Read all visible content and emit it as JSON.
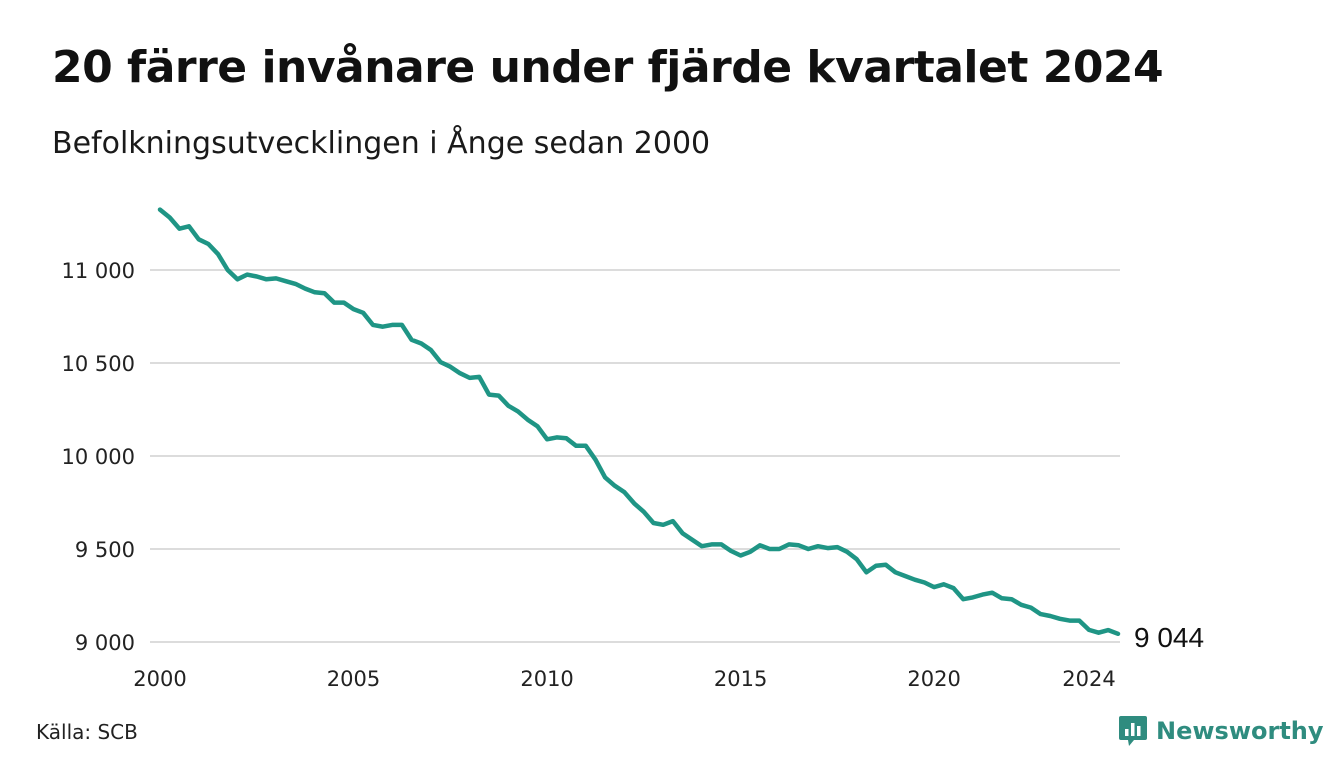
{
  "header": {
    "title": "20 färre invånare under fjärde kvartalet 2024",
    "subtitle": "Befolkningsutvecklingen i Ånge sedan 2000"
  },
  "footer": {
    "source": "Källa: SCB",
    "brand": "Newsworthy",
    "brand_icon": "newsworthy-logo-icon"
  },
  "colors": {
    "line": "#1f9585",
    "grid": "#dcdcdc",
    "brand": "#2f8c7f"
  },
  "chart_data": {
    "type": "line",
    "title": "20 färre invånare under fjärde kvartalet 2024",
    "subtitle": "Befolkningsutvecklingen i Ånge sedan 2000",
    "xlabel": "",
    "ylabel": "",
    "grid": true,
    "legend": "none",
    "x_ticks": [
      2000,
      2005,
      2010,
      2015,
      2020,
      2024
    ],
    "x_tick_labels": [
      "2000",
      "2005",
      "2010",
      "2015",
      "2020",
      "2024"
    ],
    "y_ticks": [
      9000,
      9500,
      10000,
      10500,
      11000
    ],
    "y_tick_labels": [
      "9 000",
      "9 500",
      "10 000",
      "10 500",
      "11 000"
    ],
    "xlim": [
      2000.0,
      2024.75
    ],
    "ylim": [
      9000,
      11330
    ],
    "end_label": "9 044",
    "series": [
      {
        "start": "2000 Q1",
        "frequency": "quarterly",
        "values": [
          11325,
          11282,
          11222,
          11235,
          11165,
          11140,
          11085,
          11000,
          10950,
          10975,
          10965,
          10950,
          10955,
          10940,
          10925,
          10900,
          10880,
          10875,
          10825,
          10825,
          10790,
          10770,
          10705,
          10695,
          10705,
          10705,
          10625,
          10605,
          10570,
          10505,
          10480,
          10445,
          10420,
          10425,
          10330,
          10325,
          10270,
          10240,
          10195,
          10160,
          10090,
          10100,
          10095,
          10055,
          10055,
          9980,
          9885,
          9840,
          9805,
          9745,
          9700,
          9640,
          9630,
          9650,
          9585,
          9550,
          9515,
          9525,
          9525,
          9490,
          9465,
          9485,
          9520,
          9500,
          9500,
          9525,
          9520,
          9500,
          9515,
          9505,
          9510,
          9485,
          9445,
          9375,
          9410,
          9415,
          9375,
          9355,
          9335,
          9320,
          9295,
          9310,
          9290,
          9230,
          9240,
          9255,
          9265,
          9235,
          9230,
          9200,
          9185,
          9150,
          9140,
          9125,
          9115,
          9115,
          9065,
          9050,
          9064,
          9044
        ]
      }
    ]
  }
}
